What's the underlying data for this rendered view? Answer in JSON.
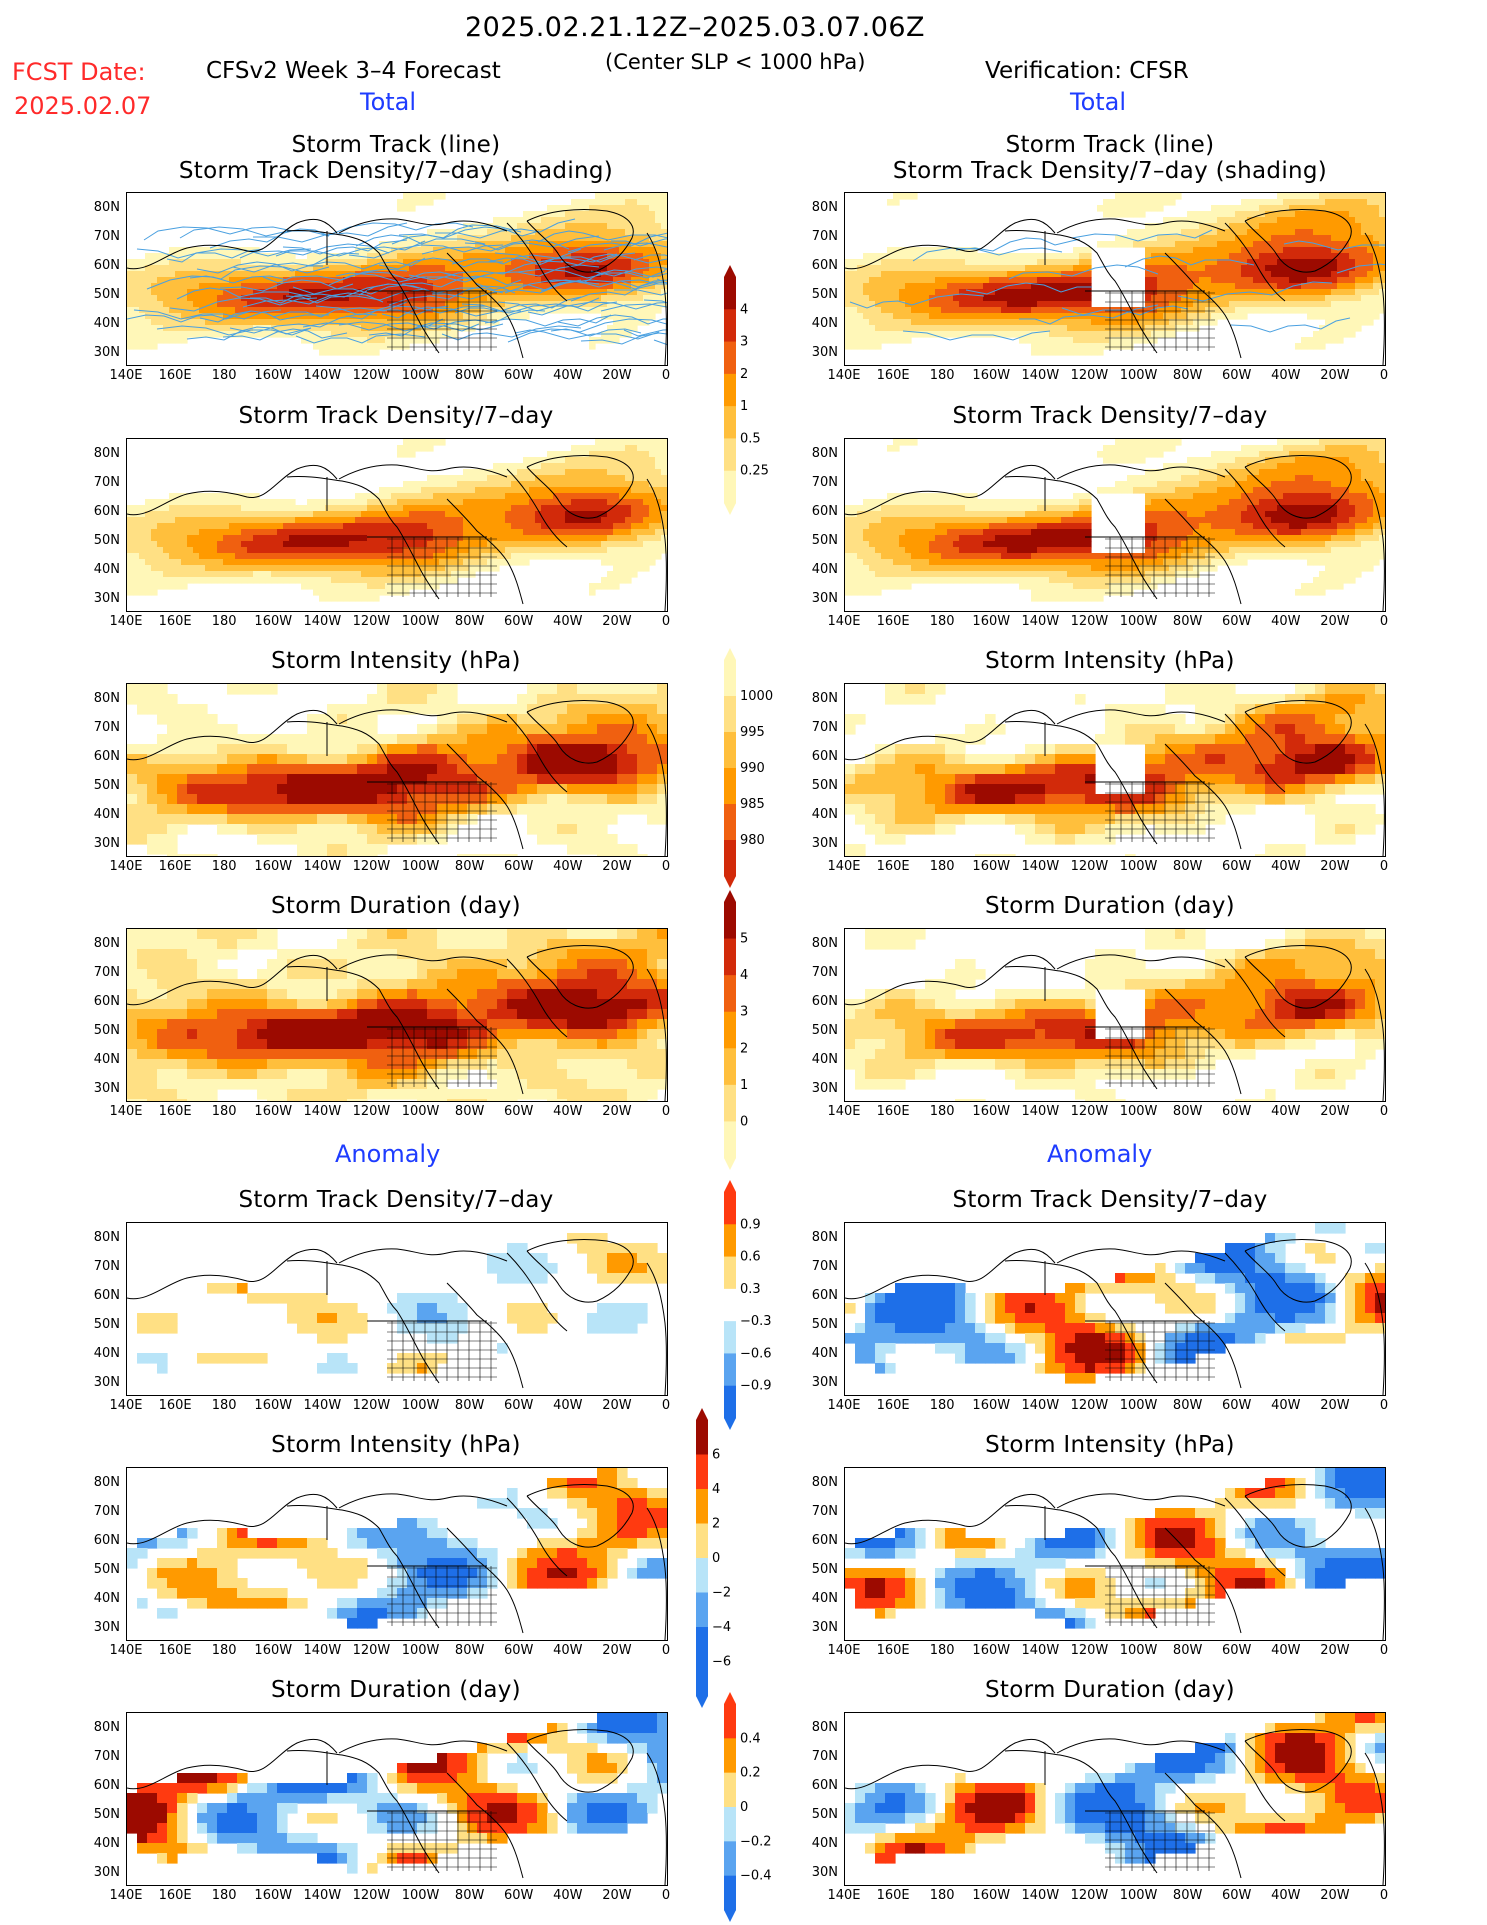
{
  "header": {
    "date_range": "2025.02.21.12Z–2025.03.07.06Z",
    "center_slp": "(Center SLP < 1000 hPa)",
    "fcst_label": "FCST Date:",
    "fcst_date": "2025.02.07",
    "model_title": "CFSv2 Week 3–4 Forecast",
    "verification": "Verification: CFSR"
  },
  "sections": {
    "total_left": "Total",
    "total_right": "Total",
    "anomaly_left": "Anomaly",
    "anomaly_right": "Anomaly"
  },
  "panel_titles": {
    "track_line": "Storm Track (line)",
    "track_shading": "Storm Track Density/7–day (shading)",
    "density": "Storm Track Density/7–day",
    "intensity": "Storm Intensity (hPa)",
    "duration": "Storm Duration (day)"
  },
  "axes": {
    "lat_labels": [
      "80N",
      "70N",
      "60N",
      "50N",
      "40N",
      "30N"
    ],
    "lon_labels": [
      "140E",
      "160E",
      "180",
      "160W",
      "140W",
      "120W",
      "100W",
      "80W",
      "60W",
      "40W",
      "20W",
      "0"
    ]
  },
  "colorbars": {
    "density_total": [
      "4",
      "3",
      "2",
      "1",
      "0.5",
      "0.25"
    ],
    "intensity_total": [
      "1000",
      "995",
      "990",
      "985",
      "980"
    ],
    "duration_total": [
      "5",
      "4",
      "3",
      "2",
      "1",
      "0"
    ],
    "density_anom": [
      "0.9",
      "0.6",
      "0.3",
      "−0.3",
      "−0.6",
      "−0.9"
    ],
    "intensity_anom": [
      "6",
      "4",
      "2",
      "0",
      "−2",
      "−4",
      "−6"
    ],
    "duration_anom": [
      "0.4",
      "0.2",
      "0",
      "−0.2",
      "−0.4"
    ]
  },
  "colors": {
    "total_scale": [
      "#fff7b8",
      "#ffe084",
      "#ffbf3c",
      "#ff9a00",
      "#f06010",
      "#d22a0a",
      "#9c0a00"
    ],
    "anom_scale": [
      "#1e6fe8",
      "#5aa4f0",
      "#b8e4f8",
      "#ffffff",
      "#ffe084",
      "#ff9a00",
      "#ff3a10",
      "#9c0a00"
    ],
    "track_line": "#4aa0e0"
  }
}
